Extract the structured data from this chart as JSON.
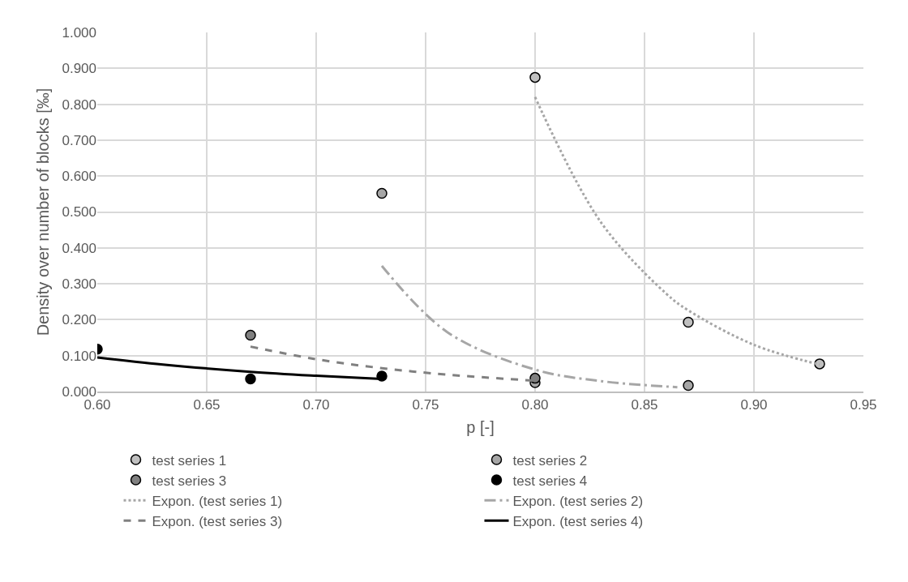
{
  "chart_data": {
    "type": "scatter",
    "xlabel": "p [-]",
    "ylabel": "Density over number of blocks [‰]",
    "xlim": [
      0.6,
      0.95
    ],
    "xticks": [
      {
        "value": 0.6,
        "label": "0.60"
      },
      {
        "value": 0.65,
        "label": "0.65"
      },
      {
        "value": 0.7,
        "label": "0.70"
      },
      {
        "value": 0.75,
        "label": "0.75"
      },
      {
        "value": 0.8,
        "label": "0.80"
      },
      {
        "value": 0.85,
        "label": "0.85"
      },
      {
        "value": 0.9,
        "label": "0.90"
      },
      {
        "value": 0.95,
        "label": "0.95"
      }
    ],
    "ylim": [
      0,
      1
    ],
    "yticks": [
      {
        "value": 0,
        "label": "0.000"
      },
      {
        "value": 0.1,
        "label": "0.100"
      },
      {
        "value": 0.2,
        "label": "0.200"
      },
      {
        "value": 0.3,
        "label": "0.300"
      },
      {
        "value": 0.4,
        "label": "0.400"
      },
      {
        "value": 0.5,
        "label": "0.500"
      },
      {
        "value": 0.6,
        "label": "0.600"
      },
      {
        "value": 0.7,
        "label": "0.700"
      },
      {
        "value": 0.8,
        "label": "0.800"
      },
      {
        "value": 0.9,
        "label": "0.900"
      },
      {
        "value": 1,
        "label": "1.000"
      }
    ],
    "grid": true,
    "legend": "bottom",
    "series": [
      {
        "name": "test series 1",
        "marker": "circle",
        "color": "#c0c0c0",
        "x": [
          0.8,
          0.87,
          0.93
        ],
        "values": [
          0.875,
          0.193,
          0.077
        ]
      },
      {
        "name": "test series 2",
        "marker": "circle",
        "color": "#a6a6a6",
        "x": [
          0.73,
          0.8,
          0.87
        ],
        "values": [
          0.552,
          0.025,
          0.017
        ]
      },
      {
        "name": "test series 3",
        "marker": "circle",
        "color": "#808080",
        "x": [
          0.67,
          0.73,
          0.8
        ],
        "values": [
          0.157,
          null,
          0.037
        ]
      },
      {
        "name": "test series 4",
        "marker": "circle",
        "color": "#000000",
        "x": [
          0.6,
          0.67,
          0.73
        ],
        "values": [
          0.118,
          0.035,
          0.043
        ]
      },
      {
        "name": "Expon. (test series 1)",
        "type": "line",
        "marker": "none",
        "line_style": "dotted",
        "color": "#a6a6a6",
        "x": [
          0.8,
          0.83,
          0.86,
          0.87,
          0.9,
          0.93
        ],
        "values": [
          0.82,
          0.472,
          0.272,
          0.226,
          0.13,
          0.075
        ]
      },
      {
        "name": "Expon. (test series 2)",
        "type": "line",
        "marker": "none",
        "line_style": "dashdot",
        "color": "#a6a6a6",
        "x": [
          0.73,
          0.76,
          0.8,
          0.83,
          0.865
        ],
        "values": [
          0.35,
          0.165,
          0.061,
          0.029,
          0.012
        ]
      },
      {
        "name": "Expon. (test series 3)",
        "type": "line",
        "marker": "none",
        "line_style": "dashed",
        "color": "#808080",
        "x": [
          0.67,
          0.7,
          0.73,
          0.76,
          0.8
        ],
        "values": [
          0.125,
          0.09,
          0.065,
          0.047,
          0.03
        ]
      },
      {
        "name": "Expon. (test series 4)",
        "type": "line",
        "marker": "none",
        "line_style": "solid",
        "color": "#000000",
        "x": [
          0.6,
          0.63,
          0.67,
          0.7,
          0.73
        ],
        "values": [
          0.095,
          0.075,
          0.055,
          0.044,
          0.035
        ]
      }
    ]
  }
}
